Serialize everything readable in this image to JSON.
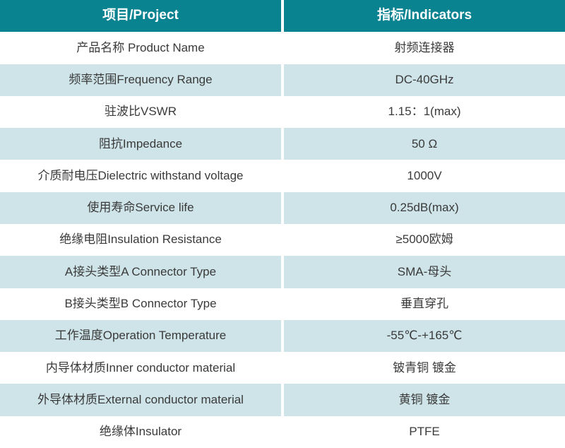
{
  "table": {
    "header": {
      "project_label": "项目/Project",
      "indicator_label": "指标/Indicators"
    },
    "rows": [
      {
        "project": "产品名称 Product Name",
        "indicator": "射频连接器"
      },
      {
        "project": "频率范围Frequency Range",
        "indicator": "DC-40GHz"
      },
      {
        "project": "驻波比VSWR",
        "indicator": "1.15：1(max)"
      },
      {
        "project": "阻抗Impedance",
        "indicator": "50 Ω"
      },
      {
        "project": "介质耐电压Dielectric withstand voltage",
        "indicator": "1000V"
      },
      {
        "project": "使用寿命Service life",
        "indicator": "0.25dB(max)"
      },
      {
        "project": "绝缘电阻Insulation Resistance",
        "indicator": "≥5000欧姆"
      },
      {
        "project": "A接头类型A Connector Type",
        "indicator": "SMA-母头"
      },
      {
        "project": "B接头类型B Connector Type",
        "indicator": "垂直穿孔"
      },
      {
        "project": "工作温度Operation Temperature",
        "indicator": "-55℃-+165℃"
      },
      {
        "project": "内导体材质Inner conductor material",
        "indicator": "铍青铜 镀金"
      },
      {
        "project": "外导体材质External conductor material",
        "indicator": "黄铜 镀金"
      },
      {
        "project": "绝缘体Insulator",
        "indicator": "PTFE"
      }
    ],
    "colors": {
      "header_bg": "#0a8391",
      "header_text": "#ffffff",
      "row_alt_bg": "#cfe4e8",
      "row_bg": "#ffffff",
      "body_text": "#3a3a3a",
      "divider": "#ffffff"
    }
  }
}
